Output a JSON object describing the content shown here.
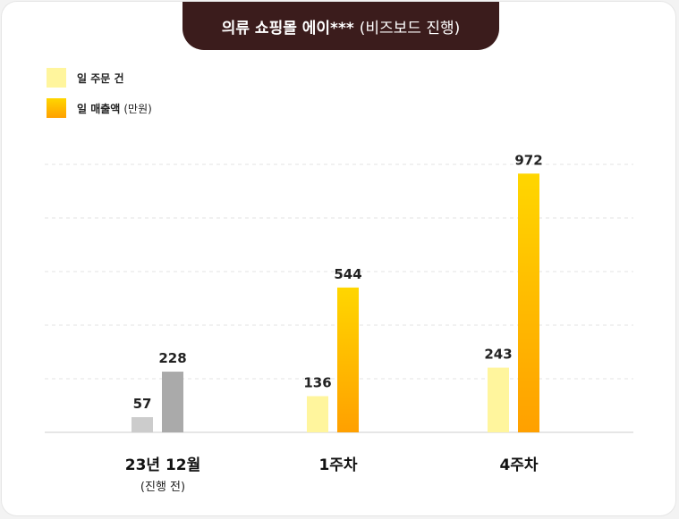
{
  "title": {
    "main": "의류 쇼핑몰 에이***",
    "sub": "(비즈보드 진행)"
  },
  "legend": {
    "orders": {
      "label": "일 주문 건",
      "unit": ""
    },
    "sales": {
      "label": "일 매출액",
      "unit": "(만원)"
    }
  },
  "colors": {
    "orders": "#fff59d",
    "sales_top": "#ffd600",
    "sales_bottom": "#ffa000",
    "pre_orders": "#cccccc",
    "pre_sales": "#aaaaaa",
    "title_bg": "#3b1c1c"
  },
  "chart_data": {
    "type": "bar",
    "categories": [
      {
        "label": "23년 12월",
        "sub": "(진행 전)"
      },
      {
        "label": "1주차",
        "sub": ""
      },
      {
        "label": "4주차",
        "sub": ""
      }
    ],
    "series": [
      {
        "name": "일 주문 건",
        "values": [
          57,
          136,
          243
        ]
      },
      {
        "name": "일 매출액 (만원)",
        "values": [
          228,
          544,
          972
        ]
      }
    ],
    "ylim": [
      0,
      1000
    ],
    "grid": true,
    "legend_position": "top-left"
  }
}
